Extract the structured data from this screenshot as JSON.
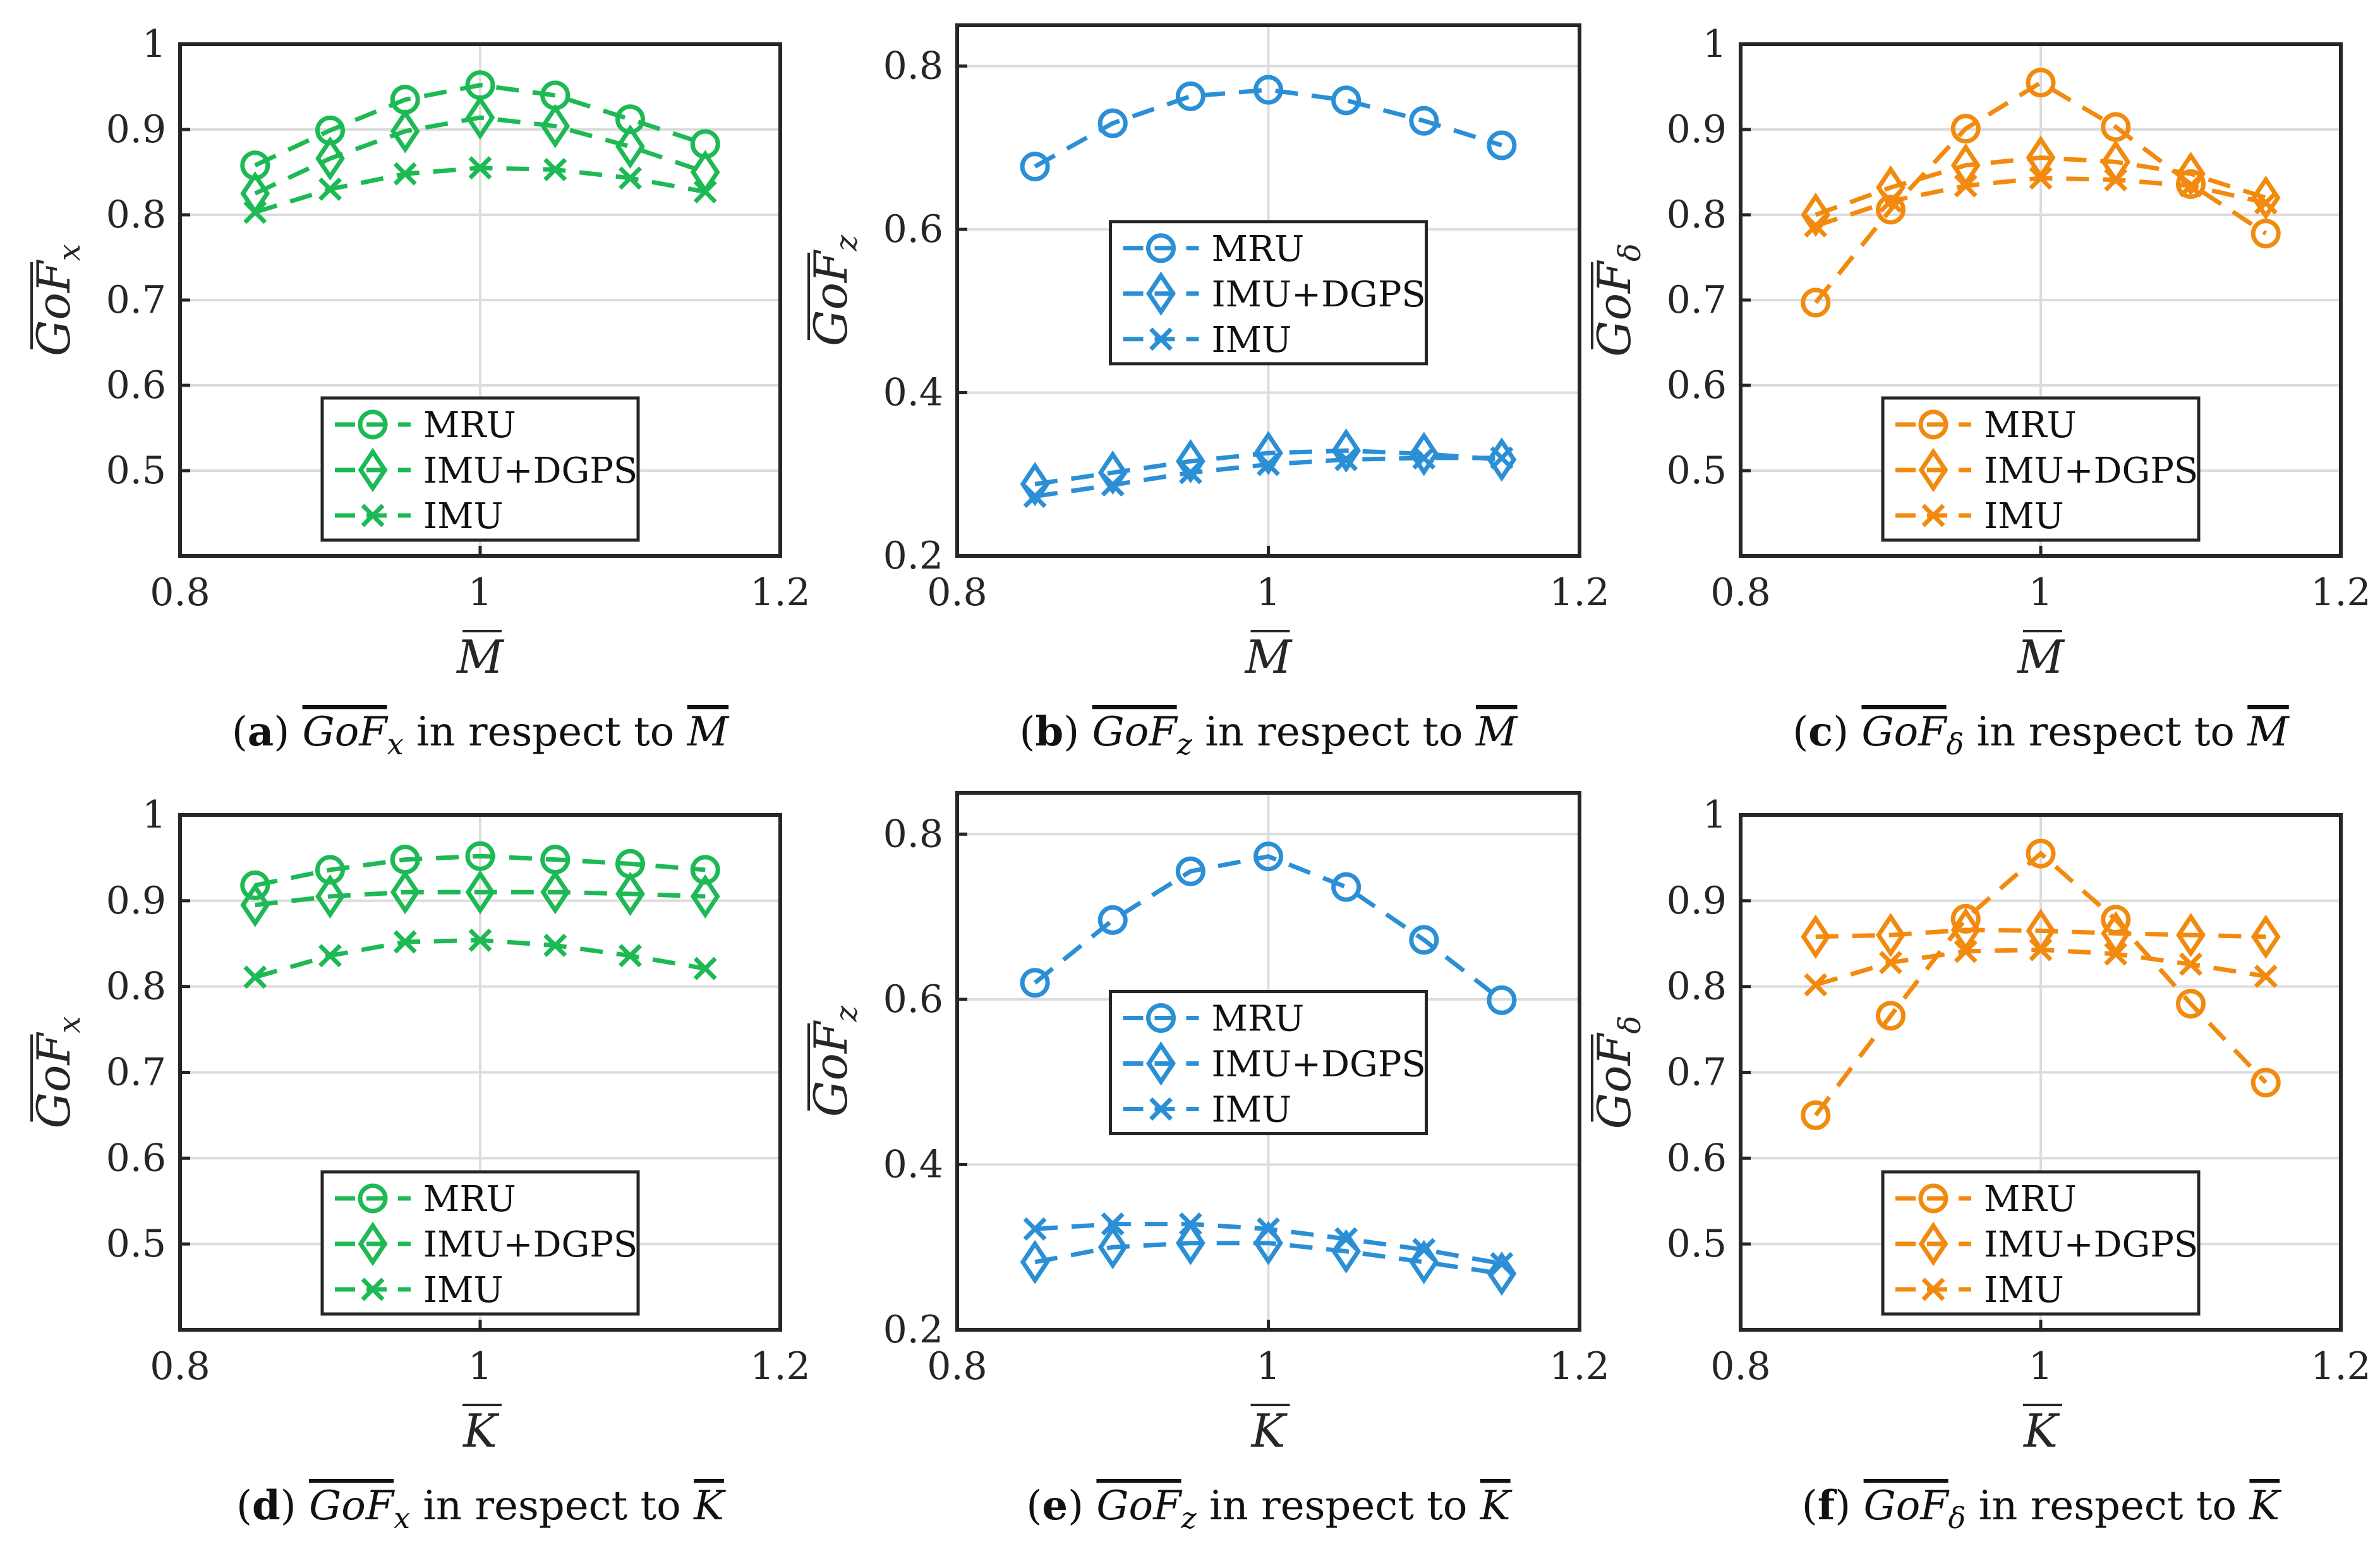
{
  "figure": {
    "colors": {
      "green": "#1db954",
      "blue": "#2b8fd6",
      "orange": "#f28a0f"
    },
    "legend_labels": [
      "MRU",
      "IMU+DGPS",
      "IMU"
    ],
    "marker_icons": [
      "circle-marker",
      "diamond-marker",
      "cross-marker"
    ]
  },
  "chart_data": [
    {
      "id": "a",
      "type": "line",
      "color_key": "green",
      "title": "",
      "xlabel": "M",
      "ylabel": "GoF",
      "ylabel_subscript": "x",
      "xlim": [
        0.8,
        1.2
      ],
      "ylim": [
        0.4,
        1.0
      ],
      "xticks": [
        0.8,
        1,
        1.2
      ],
      "xtick_labels": [
        "0.8",
        "1",
        "1.2"
      ],
      "yticks": [
        0.5,
        0.6,
        0.7,
        0.8,
        0.9,
        1.0
      ],
      "ytick_labels": [
        "0.5",
        "0.6",
        "0.7",
        "0.8",
        "0.9",
        "1"
      ],
      "legend_position": "bottom-center",
      "x": [
        0.85,
        0.9,
        0.95,
        1.0,
        1.05,
        1.1,
        1.15
      ],
      "series": [
        {
          "name": "MRU",
          "marker": "circle",
          "values": [
            0.858,
            0.899,
            0.935,
            0.952,
            0.94,
            0.912,
            0.883
          ]
        },
        {
          "name": "IMU+DGPS",
          "marker": "diamond",
          "values": [
            0.825,
            0.866,
            0.898,
            0.914,
            0.904,
            0.88,
            0.85
          ]
        },
        {
          "name": "IMU",
          "marker": "cross",
          "values": [
            0.803,
            0.83,
            0.848,
            0.855,
            0.853,
            0.843,
            0.827
          ]
        }
      ],
      "caption": {
        "label": "a",
        "pre": "",
        "math": "GoF",
        "sub": "x",
        "mid": " in respect to ",
        "symbol": "M"
      }
    },
    {
      "id": "b",
      "type": "line",
      "color_key": "blue",
      "title": "",
      "xlabel": "M",
      "ylabel": "GoF",
      "ylabel_subscript": "z",
      "xlim": [
        0.8,
        1.2
      ],
      "ylim": [
        0.2,
        0.85
      ],
      "xticks": [
        0.8,
        1,
        1.2
      ],
      "xtick_labels": [
        "0.8",
        "1",
        "1.2"
      ],
      "yticks": [
        0.2,
        0.4,
        0.6,
        0.8
      ],
      "ytick_labels": [
        "0.2",
        "0.4",
        "0.6",
        "0.8"
      ],
      "legend_position": "middle-center",
      "x": [
        0.85,
        0.9,
        0.95,
        1.0,
        1.05,
        1.1,
        1.15
      ],
      "series": [
        {
          "name": "MRU",
          "marker": "circle",
          "values": [
            0.677,
            0.73,
            0.763,
            0.771,
            0.758,
            0.733,
            0.703
          ]
        },
        {
          "name": "IMU+DGPS",
          "marker": "diamond",
          "values": [
            0.288,
            0.302,
            0.316,
            0.326,
            0.329,
            0.325,
            0.318
          ]
        },
        {
          "name": "IMU",
          "marker": "cross",
          "values": [
            0.273,
            0.287,
            0.302,
            0.312,
            0.318,
            0.32,
            0.32
          ]
        }
      ],
      "caption": {
        "label": "b",
        "pre": "",
        "math": "GoF",
        "sub": "z",
        "mid": " in respect to ",
        "symbol": "M"
      }
    },
    {
      "id": "c",
      "type": "line",
      "color_key": "orange",
      "title": "",
      "xlabel": "M",
      "ylabel": "GoF",
      "ylabel_subscript": "δ",
      "xlim": [
        0.8,
        1.2
      ],
      "ylim": [
        0.4,
        1.0
      ],
      "xticks": [
        0.8,
        1,
        1.2
      ],
      "xtick_labels": [
        "0.8",
        "1",
        "1.2"
      ],
      "yticks": [
        0.5,
        0.6,
        0.7,
        0.8,
        0.9,
        1.0
      ],
      "ytick_labels": [
        "0.5",
        "0.6",
        "0.7",
        "0.8",
        "0.9",
        "1"
      ],
      "legend_position": "bottom-center",
      "x": [
        0.85,
        0.9,
        0.95,
        1.0,
        1.05,
        1.1,
        1.15
      ],
      "series": [
        {
          "name": "MRU",
          "marker": "circle",
          "values": [
            0.697,
            0.806,
            0.901,
            0.955,
            0.903,
            0.836,
            0.778
          ]
        },
        {
          "name": "IMU+DGPS",
          "marker": "diamond",
          "values": [
            0.8,
            0.832,
            0.858,
            0.867,
            0.862,
            0.848,
            0.82
          ]
        },
        {
          "name": "IMU",
          "marker": "cross",
          "values": [
            0.787,
            0.816,
            0.834,
            0.843,
            0.841,
            0.834,
            0.814
          ]
        }
      ],
      "caption": {
        "label": "c",
        "pre": "",
        "math": "GoF",
        "sub": "δ",
        "mid": " in respect to ",
        "symbol": "M"
      }
    },
    {
      "id": "d",
      "type": "line",
      "color_key": "green",
      "title": "",
      "xlabel": "K",
      "ylabel": "GoF",
      "ylabel_subscript": "x",
      "xlim": [
        0.8,
        1.2
      ],
      "ylim": [
        0.4,
        1.0
      ],
      "xticks": [
        0.8,
        1,
        1.2
      ],
      "xtick_labels": [
        "0.8",
        "1",
        "1.2"
      ],
      "yticks": [
        0.5,
        0.6,
        0.7,
        0.8,
        0.9,
        1.0
      ],
      "ytick_labels": [
        "0.5",
        "0.6",
        "0.7",
        "0.8",
        "0.9",
        "1"
      ],
      "legend_position": "bottom-center",
      "x": [
        0.85,
        0.9,
        0.95,
        1.0,
        1.05,
        1.1,
        1.15
      ],
      "series": [
        {
          "name": "MRU",
          "marker": "circle",
          "values": [
            0.918,
            0.936,
            0.948,
            0.952,
            0.948,
            0.943,
            0.936
          ]
        },
        {
          "name": "IMU+DGPS",
          "marker": "diamond",
          "values": [
            0.895,
            0.905,
            0.91,
            0.91,
            0.91,
            0.908,
            0.905
          ]
        },
        {
          "name": "IMU",
          "marker": "cross",
          "values": [
            0.811,
            0.836,
            0.852,
            0.854,
            0.848,
            0.836,
            0.821
          ]
        }
      ],
      "caption": {
        "label": "d",
        "pre": "",
        "math": "GoF",
        "sub": "x",
        "mid": " in respect to ",
        "symbol": "K"
      }
    },
    {
      "id": "e",
      "type": "line",
      "color_key": "blue",
      "title": "",
      "xlabel": "K",
      "ylabel": "GoF",
      "ylabel_subscript": "z",
      "xlim": [
        0.8,
        1.2
      ],
      "ylim": [
        0.2,
        0.85
      ],
      "xticks": [
        0.8,
        1,
        1.2
      ],
      "xtick_labels": [
        "0.8",
        "1",
        "1.2"
      ],
      "yticks": [
        0.2,
        0.4,
        0.6,
        0.8
      ],
      "ytick_labels": [
        "0.2",
        "0.4",
        "0.6",
        "0.8"
      ],
      "legend_position": "middle-center",
      "x": [
        0.85,
        0.9,
        0.95,
        1.0,
        1.05,
        1.1,
        1.15
      ],
      "series": [
        {
          "name": "MRU",
          "marker": "circle",
          "values": [
            0.62,
            0.696,
            0.755,
            0.773,
            0.736,
            0.672,
            0.599
          ]
        },
        {
          "name": "IMU+DGPS",
          "marker": "diamond",
          "values": [
            0.282,
            0.3,
            0.305,
            0.305,
            0.295,
            0.282,
            0.268
          ]
        },
        {
          "name": "IMU",
          "marker": "cross",
          "values": [
            0.322,
            0.328,
            0.328,
            0.322,
            0.31,
            0.297,
            0.28
          ]
        }
      ],
      "caption": {
        "label": "e",
        "pre": "",
        "math": "GoF",
        "sub": "z",
        "mid": " in respect to ",
        "symbol": "K"
      }
    },
    {
      "id": "f",
      "type": "line",
      "color_key": "orange",
      "title": "",
      "xlabel": "K",
      "ylabel": "GoF",
      "ylabel_subscript": "δ",
      "xlim": [
        0.8,
        1.2
      ],
      "ylim": [
        0.4,
        1.0
      ],
      "xticks": [
        0.8,
        1,
        1.2
      ],
      "xtick_labels": [
        "0.8",
        "1",
        "1.2"
      ],
      "yticks": [
        0.5,
        0.6,
        0.7,
        0.8,
        0.9,
        1.0
      ],
      "ytick_labels": [
        "0.5",
        "0.6",
        "0.7",
        "0.8",
        "0.9",
        "1"
      ],
      "legend_position": "bottom-center",
      "x": [
        0.85,
        0.9,
        0.95,
        1.0,
        1.05,
        1.1,
        1.15
      ],
      "series": [
        {
          "name": "MRU",
          "marker": "circle",
          "values": [
            0.65,
            0.766,
            0.879,
            0.955,
            0.878,
            0.78,
            0.688
          ]
        },
        {
          "name": "IMU+DGPS",
          "marker": "diamond",
          "values": [
            0.858,
            0.86,
            0.866,
            0.865,
            0.862,
            0.86,
            0.858
          ]
        },
        {
          "name": "IMU",
          "marker": "cross",
          "values": [
            0.802,
            0.828,
            0.841,
            0.843,
            0.838,
            0.826,
            0.812
          ]
        }
      ],
      "caption": {
        "label": "f",
        "pre": "",
        "math": "GoF",
        "sub": "δ",
        "mid": " in respect to ",
        "symbol": "K"
      }
    }
  ]
}
